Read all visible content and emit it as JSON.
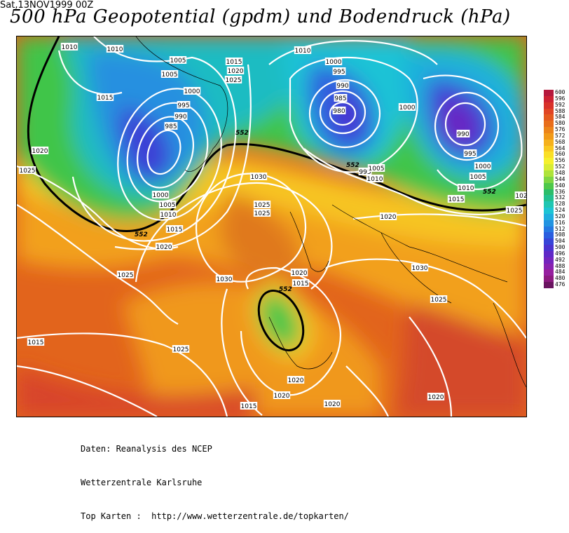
{
  "header": {
    "date": "Sat,13NOV1999  00Z",
    "title": "500 hPa Geopotential (gpdm) und Bodendruck (hPa)"
  },
  "legend": {
    "levels": [
      600,
      596,
      592,
      588,
      584,
      580,
      576,
      572,
      568,
      564,
      560,
      556,
      552,
      548,
      544,
      540,
      536,
      532,
      528,
      524,
      520,
      516,
      512,
      508,
      504,
      500,
      496,
      492,
      488,
      484,
      480,
      476
    ],
    "colors": [
      "#b5183d",
      "#cc2233",
      "#d8322a",
      "#e04525",
      "#e45a1f",
      "#e86e1b",
      "#ec8419",
      "#f19a18",
      "#f5b11c",
      "#f9c820",
      "#fadf27",
      "#f5f02c",
      "#d8ec33",
      "#aee33a",
      "#7ed642",
      "#4ec84a",
      "#2bbd6a",
      "#22c08f",
      "#1fc6b2",
      "#1dc4d4",
      "#1fadde",
      "#2293e1",
      "#2578e2",
      "#2a5edf",
      "#3745d8",
      "#4a33cf",
      "#5f28c7",
      "#7424bd",
      "#8822b0",
      "#961f9f",
      "#8c1a80",
      "#6a1460"
    ]
  },
  "contour_labels": {
    "pressure": [
      "1010",
      "1010",
      "1005",
      "1005",
      "1015",
      "1020",
      "1025",
      "1000",
      "995",
      "990",
      "985",
      "1015",
      "1020",
      "1025",
      "1000",
      "1005",
      "1010",
      "1015",
      "1020",
      "1025",
      "1010",
      "1000",
      "995",
      "990",
      "985",
      "980",
      "995",
      "1005",
      "1010",
      "1000",
      "990",
      "995",
      "1000",
      "1005",
      "1010",
      "1015",
      "1020",
      "1025",
      "102",
      "1025",
      "1030",
      "1025",
      "1030",
      "1020",
      "1015",
      "1030",
      "1025",
      "1015",
      "1025",
      "1020",
      "1020",
      "1015",
      "1020",
      "1020"
    ],
    "geopotential": [
      "552",
      "552",
      "552",
      "552",
      "552"
    ]
  },
  "footer": {
    "line1": "Daten: Reanalysis des NCEP",
    "line2": "Wetterzentrale Karlsruhe",
    "line3": "Top Karten :  http://www.wetterzentrale.de/topkarten/"
  }
}
